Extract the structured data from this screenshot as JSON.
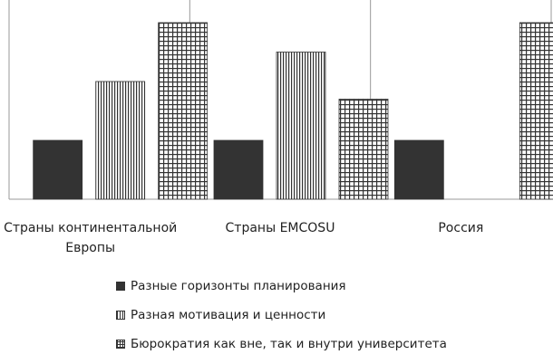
{
  "chart_data": {
    "type": "bar",
    "categories": [
      [
        "Страны континентальной",
        "Европы"
      ],
      [
        "Страны EMCOSU"
      ],
      [
        "Россия"
      ]
    ],
    "series": [
      {
        "name": "Разные горизонты планирования",
        "pattern": "solid",
        "values": [
          1,
          1,
          1
        ]
      },
      {
        "name": "Разная мотивация и ценности",
        "pattern": "vertical-lines",
        "values": [
          2,
          2.5,
          0
        ]
      },
      {
        "name": "Бюрократия как вне, так и внутри университета",
        "pattern": "grid",
        "values": [
          3,
          1.7,
          3
        ]
      }
    ],
    "ylim": [
      0,
      3.2
    ],
    "grid": false,
    "legend_position": "bottom",
    "colors": {
      "fill": "#333333",
      "background": "#ffffff",
      "axis": "#999999"
    }
  }
}
